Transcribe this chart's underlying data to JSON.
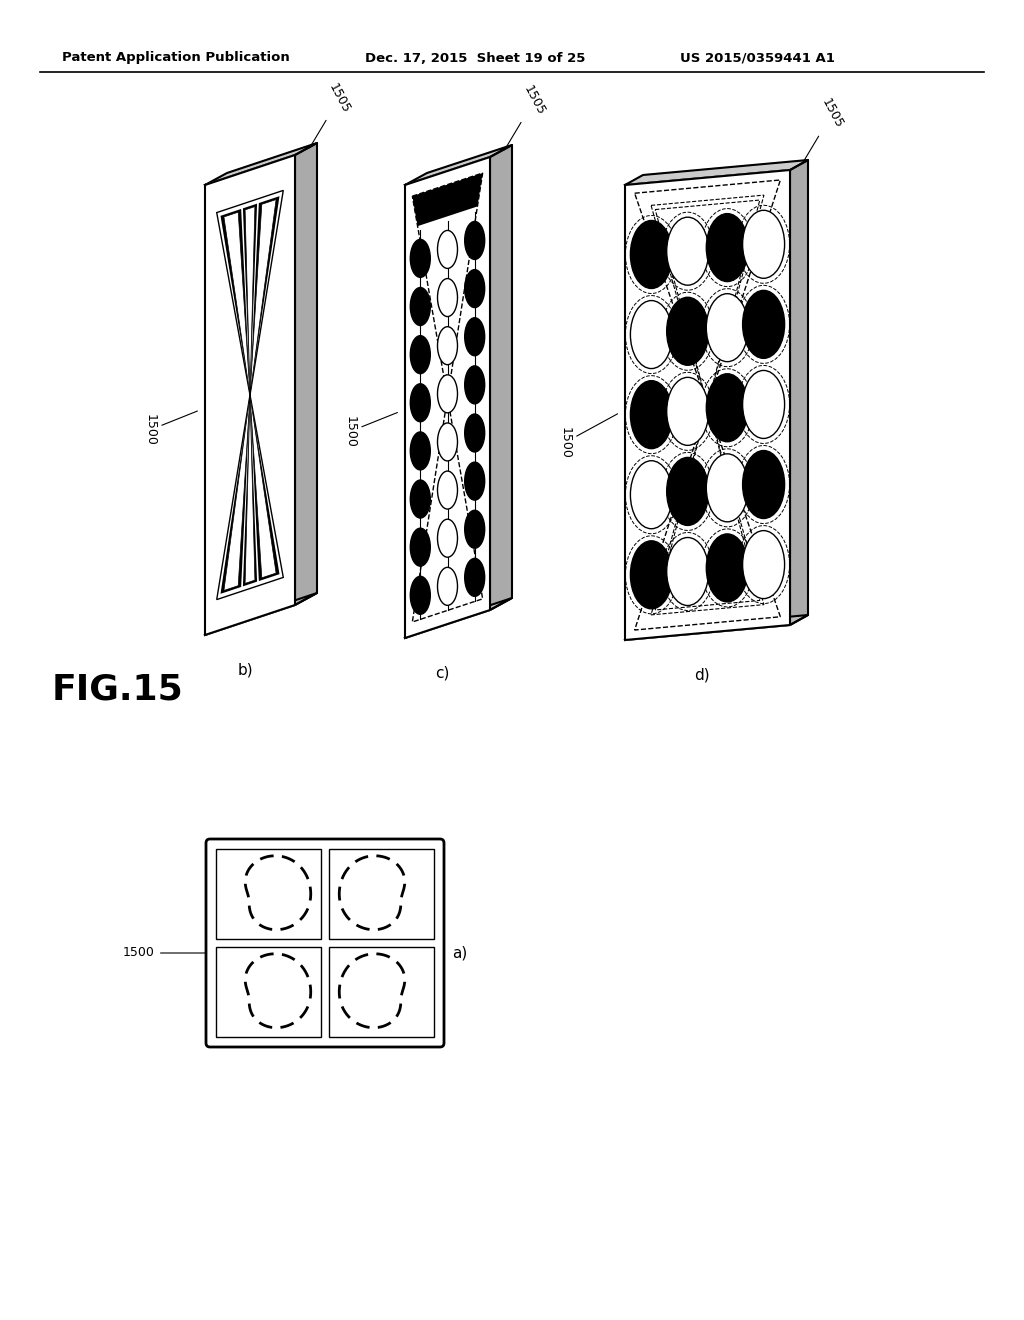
{
  "bg_color": "#ffffff",
  "header_left": "Patent Application Publication",
  "header_mid": "Dec. 17, 2015  Sheet 19 of 25",
  "header_right": "US 2015/0359441 A1",
  "fig_label": "FIG.15",
  "ref_1500": "1500",
  "ref_1505": "1505",
  "panel_b": {
    "label": "b)",
    "stripes": 3
  },
  "panel_c": {
    "label": "c)",
    "cols": 3,
    "rows": 8
  },
  "panel_d": {
    "label": "d)",
    "cols": 4,
    "rows": 5
  },
  "panel_a": {
    "label": "a)"
  }
}
